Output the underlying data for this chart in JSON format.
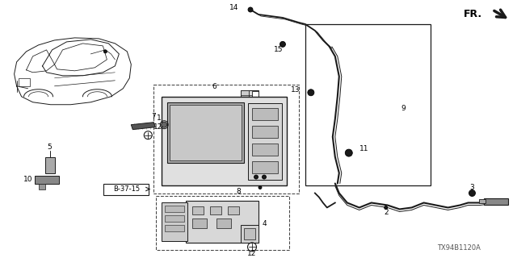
{
  "diagram_code": "TX94B1120A",
  "bg_color": "#ffffff",
  "line_color": "#1a1a1a",
  "gray1": "#bbbbbb",
  "gray2": "#888888",
  "gray3": "#555555",
  "dashed_color": "#444444"
}
